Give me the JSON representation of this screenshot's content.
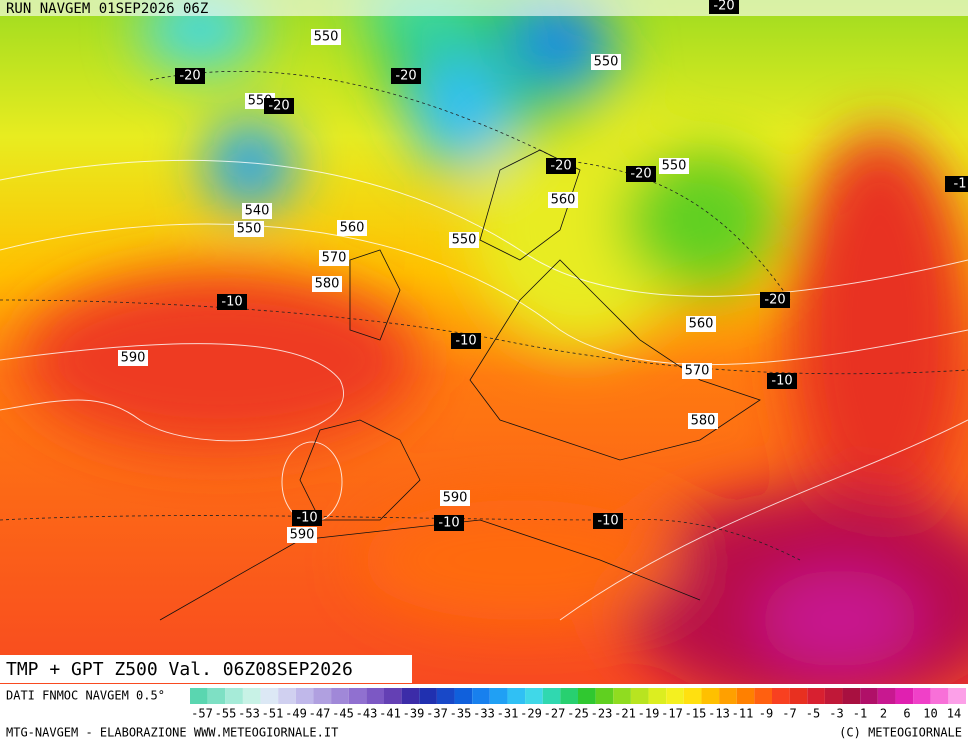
{
  "header": {
    "run": "RUN NAVGEM 01SEP2026 06Z"
  },
  "map": {
    "title": "TMP + GPT Z500 Val. 06Z08SEP2026",
    "contour_labels": [
      550,
      -20,
      550,
      -20,
      -20,
      550,
      -20,
      560,
      -20,
      -20,
      550,
      540,
      550,
      560,
      550,
      570,
      580,
      -10,
      -20,
      -10,
      560,
      590,
      570,
      -10,
      580,
      590,
      -10,
      -10,
      -10,
      590,
      -1
    ]
  },
  "colorbar": {
    "source": "DATI FNMOC NAVGEM 0.5°",
    "ticks": [
      -57,
      -55,
      -53,
      -51,
      -49,
      -47,
      -45,
      -43,
      -41,
      -39,
      -37,
      -35,
      -33,
      -31,
      -29,
      -27,
      -25,
      -23,
      -21,
      -19,
      -17,
      -15,
      -13,
      -11,
      -9,
      -7,
      -5,
      -3,
      -1,
      2,
      6,
      10,
      14
    ],
    "colors": [
      "#5ad6b0",
      "#7ee0c4",
      "#a6ebd8",
      "#c8f2e6",
      "#dce8f5",
      "#d0d0f0",
      "#c0b8ea",
      "#b0a0e0",
      "#a088d8",
      "#9070d0",
      "#7c58c4",
      "#6440b4",
      "#3c2ca8",
      "#2030b0",
      "#1848c8",
      "#1060dc",
      "#1880ee",
      "#20a0f4",
      "#30c0f4",
      "#40d8e8",
      "#30d8b0",
      "#28d070",
      "#30c830",
      "#60d020",
      "#90dc20",
      "#b8e420",
      "#dcee20",
      "#f4f020",
      "#ffe010",
      "#ffc000",
      "#ffa000",
      "#ff8000",
      "#ff6010",
      "#f84020",
      "#e83020",
      "#d82030",
      "#c01838",
      "#a81040",
      "#b01068",
      "#c81890",
      "#e020b0",
      "#f040c8",
      "#f870d8",
      "#fca0e8"
    ]
  },
  "footer": {
    "left": "MTG-NAVGEM - ELABORAZIONE WWW.METEOGIORNALE.IT",
    "right": "(C) METEOGIORNALE"
  }
}
